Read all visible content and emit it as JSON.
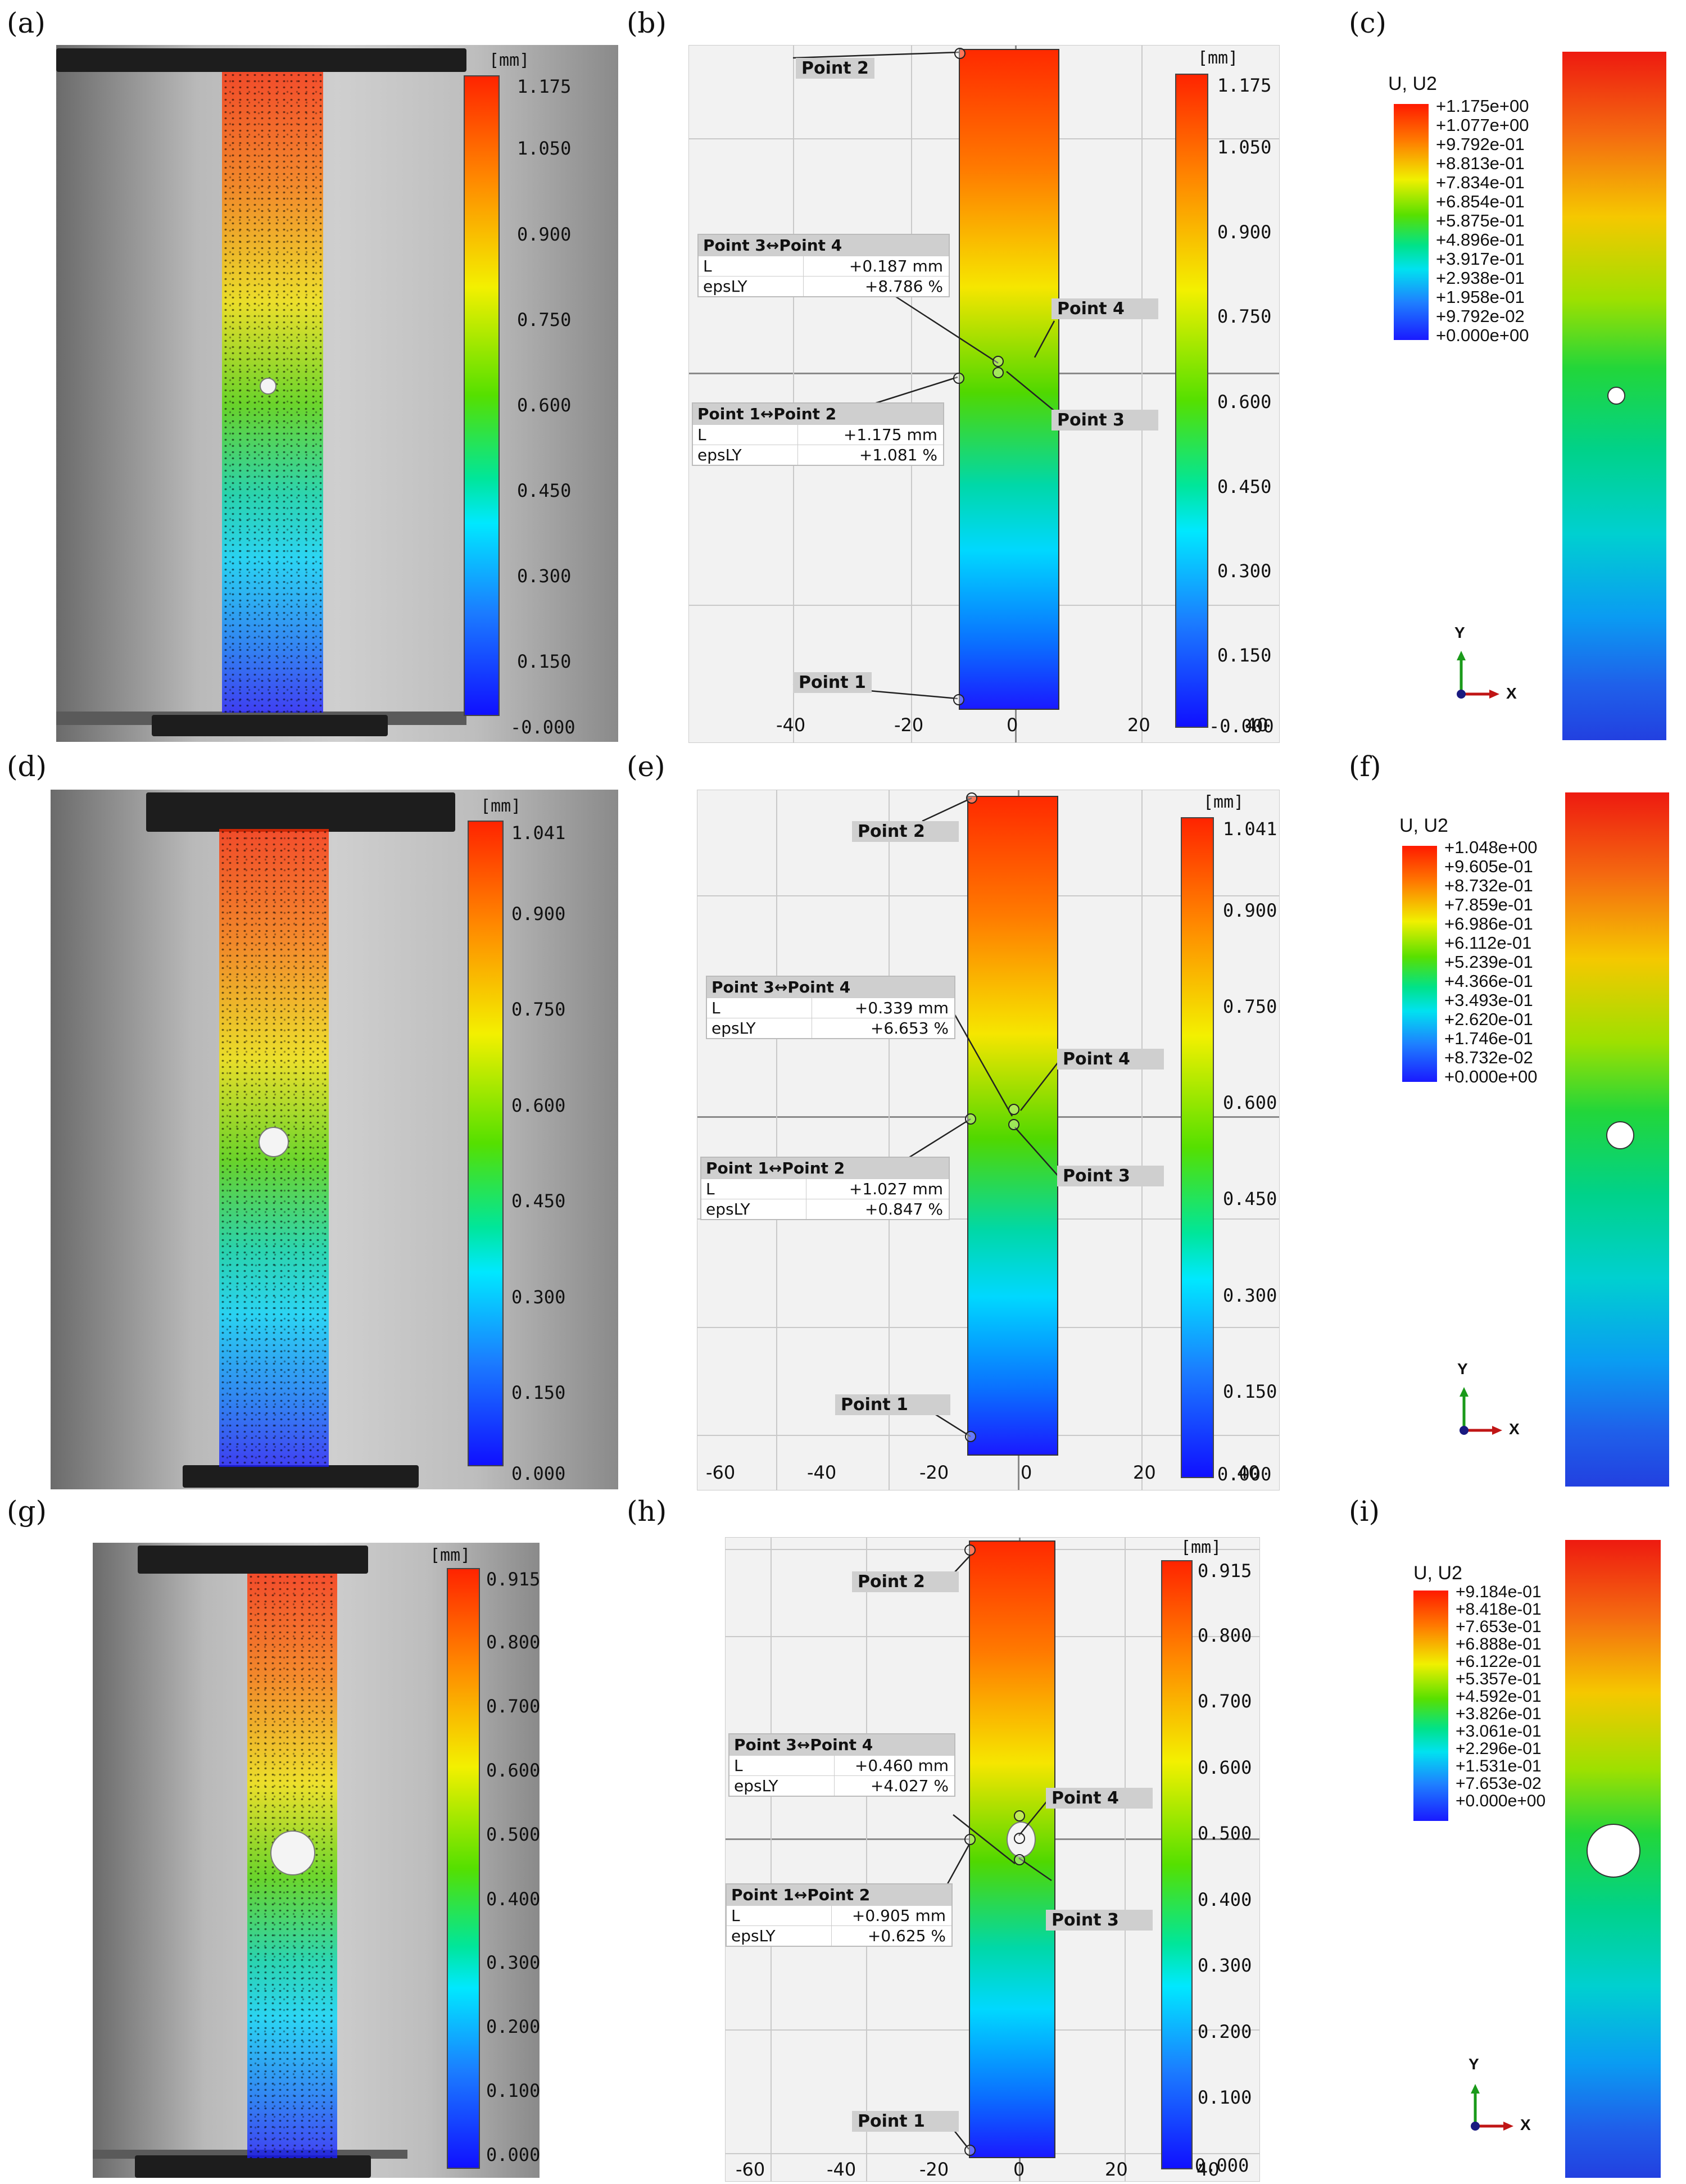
{
  "labels": {
    "a": "(a)",
    "b": "(b)",
    "c": "(c)",
    "d": "(d)",
    "e": "(e)",
    "f": "(f)",
    "g": "(g)",
    "h": "(h)",
    "i": "(i)"
  },
  "unit": "[mm]",
  "row1": {
    "photo_ticks": [
      "1.175",
      "1.050",
      "0.900",
      "0.750",
      "0.600",
      "0.450",
      "0.300",
      "0.150",
      "-0.000"
    ],
    "dic_ticks": [
      "1.175",
      "1.050",
      "0.900",
      "0.750",
      "0.600",
      "0.450",
      "0.300",
      "0.150",
      "-0.000"
    ],
    "dic_x_axis": [
      "-40",
      "-20",
      "0",
      "20",
      "40"
    ],
    "points": {
      "p1": "Point 1",
      "p2": "Point 2",
      "p3": "Point 3",
      "p4": "Point 4"
    },
    "m34": {
      "title": "Point 3↔Point 4",
      "L_key": "L",
      "L_val": "+0.187 mm",
      "eps_key": "epsLY",
      "eps_val": "+8.786 %"
    },
    "m12": {
      "title": "Point 1↔Point 2",
      "L_key": "L",
      "L_val": "+1.175 mm",
      "eps_key": "epsLY",
      "eps_val": "+1.081 %"
    },
    "fem_title": "U, U2",
    "fem_values": [
      "+1.175e+00",
      "+1.077e+00",
      "+9.792e-01",
      "+8.813e-01",
      "+7.834e-01",
      "+6.854e-01",
      "+5.875e-01",
      "+4.896e-01",
      "+3.917e-01",
      "+2.938e-01",
      "+1.958e-01",
      "+9.792e-02",
      "+0.000e+00"
    ]
  },
  "row2": {
    "photo_ticks": [
      "1.041",
      "0.900",
      "0.750",
      "0.600",
      "0.450",
      "0.300",
      "0.150",
      "0.000"
    ],
    "dic_ticks": [
      "1.041",
      "0.900",
      "0.750",
      "0.600",
      "0.450",
      "0.300",
      "0.150",
      "0.000"
    ],
    "dic_x_axis": [
      "-60",
      "-40",
      "-20",
      "0",
      "20",
      "40"
    ],
    "points": {
      "p1": "Point 1",
      "p2": "Point 2",
      "p3": "Point 3",
      "p4": "Point 4"
    },
    "m34": {
      "title": "Point 3↔Point 4",
      "L_key": "L",
      "L_val": "+0.339 mm",
      "eps_key": "epsLY",
      "eps_val": "+6.653 %"
    },
    "m12": {
      "title": "Point 1↔Point 2",
      "L_key": "L",
      "L_val": "+1.027 mm",
      "eps_key": "epsLY",
      "eps_val": "+0.847 %"
    },
    "fem_title": "U, U2",
    "fem_values": [
      "+1.048e+00",
      "+9.605e-01",
      "+8.732e-01",
      "+7.859e-01",
      "+6.986e-01",
      "+6.112e-01",
      "+5.239e-01",
      "+4.366e-01",
      "+3.493e-01",
      "+2.620e-01",
      "+1.746e-01",
      "+8.732e-02",
      "+0.000e+00"
    ]
  },
  "row3": {
    "photo_ticks": [
      "0.915",
      "0.800",
      "0.700",
      "0.600",
      "0.500",
      "0.400",
      "0.300",
      "0.200",
      "0.100",
      "0.000"
    ],
    "dic_ticks": [
      "0.915",
      "0.800",
      "0.700",
      "0.600",
      "0.500",
      "0.400",
      "0.300",
      "0.200",
      "0.100",
      "0.000"
    ],
    "dic_x_axis": [
      "-60",
      "-40",
      "-20",
      "0",
      "20",
      "40"
    ],
    "points": {
      "p1": "Point 1",
      "p2": "Point 2",
      "p3": "Point 3",
      "p4": "Point 4"
    },
    "m34": {
      "title": "Point 3↔Point 4",
      "L_key": "L",
      "L_val": "+0.460 mm",
      "eps_key": "epsLY",
      "eps_val": "+4.027 %"
    },
    "m12": {
      "title": "Point 1↔Point 2",
      "L_key": "L",
      "L_val": "+0.905 mm",
      "eps_key": "epsLY",
      "eps_val": "+0.625 %"
    },
    "fem_title": "U, U2",
    "fem_values": [
      "+9.184e-01",
      "+8.418e-01",
      "+7.653e-01",
      "+6.888e-01",
      "+6.122e-01",
      "+5.357e-01",
      "+4.592e-01",
      "+3.826e-01",
      "+3.061e-01",
      "+2.296e-01",
      "+1.531e-01",
      "+7.653e-02",
      "+0.000e+00"
    ]
  },
  "triad": {
    "y": "Y",
    "x": "X"
  }
}
